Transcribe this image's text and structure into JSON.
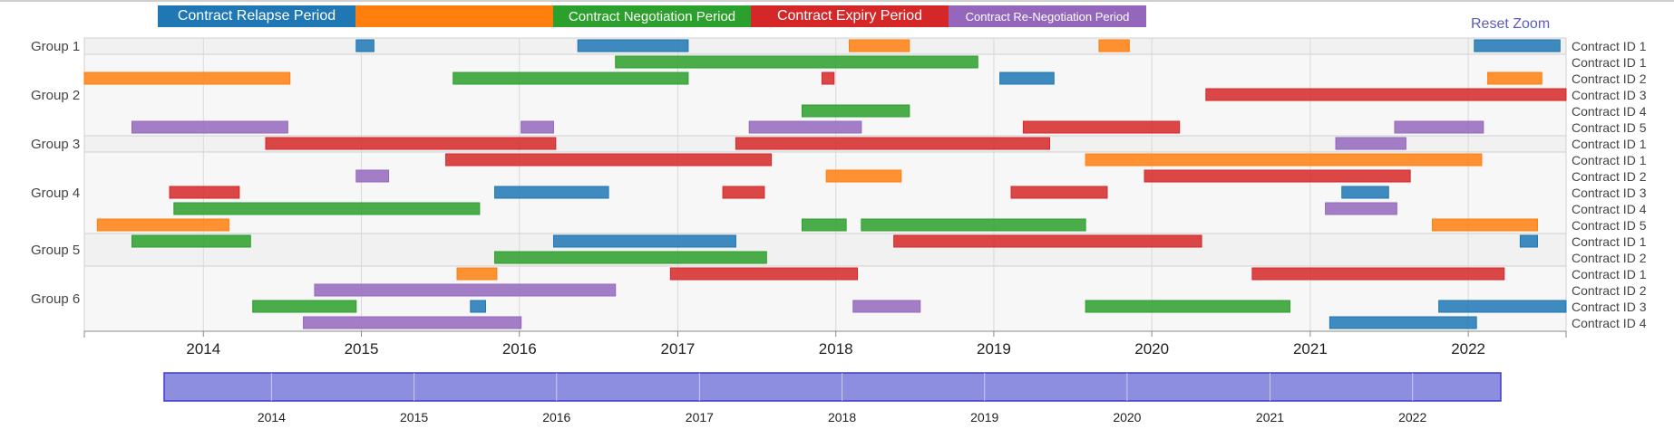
{
  "legend": [
    {
      "label": "Contract Relapse Period",
      "color": "#1f77b4"
    },
    {
      "label": "",
      "color": "#ff7f0e"
    },
    {
      "label": "Contract Negotiation Period",
      "color": "#2ca02c"
    },
    {
      "label": "Contract Expiry Period",
      "color": "#d62728"
    },
    {
      "label": "Contract Re-Negotiation Period",
      "color": "#9467bd"
    }
  ],
  "reset_zoom_label": "Reset Zoom",
  "chart_data": {
    "type": "timeline",
    "x_range": [
      "2013-04-01",
      "2022-08-15"
    ],
    "x_ticks": [
      "2014",
      "2015",
      "2016",
      "2017",
      "2018",
      "2019",
      "2020",
      "2021",
      "2022"
    ],
    "navigator": {
      "range": [
        "2013-04-01",
        "2022-08-15"
      ],
      "ticks": [
        "2014",
        "2015",
        "2016",
        "2017",
        "2018",
        "2019",
        "2020",
        "2021",
        "2022"
      ],
      "selection": [
        "2013-04-01",
        "2022-08-15"
      ]
    },
    "groups": [
      {
        "name": "Group 1",
        "rows": [
          {
            "label": "Contract ID 1",
            "bars": [
              {
                "start": "2014-12-20",
                "end": "2015-01-30",
                "category": 0
              },
              {
                "start": "2016-05-15",
                "end": "2017-01-25",
                "category": 0
              },
              {
                "start": "2018-02-01",
                "end": "2018-06-20",
                "category": 1
              },
              {
                "start": "2019-09-01",
                "end": "2019-11-10",
                "category": 1
              },
              {
                "start": "2022-01-15",
                "end": "2022-08-01",
                "category": 0
              }
            ]
          }
        ]
      },
      {
        "name": "Group 2",
        "rows": [
          {
            "label": "Contract ID 1",
            "bars": [
              {
                "start": "2016-08-10",
                "end": "2018-11-25",
                "category": 2
              }
            ]
          },
          {
            "label": "Contract ID 2",
            "bars": [
              {
                "start": "2013-04-01",
                "end": "2014-07-20",
                "category": 1
              },
              {
                "start": "2015-08-01",
                "end": "2017-01-25",
                "category": 2
              },
              {
                "start": "2017-11-30",
                "end": "2017-12-28",
                "category": 3
              },
              {
                "start": "2019-01-15",
                "end": "2019-05-20",
                "category": 0
              },
              {
                "start": "2022-02-15",
                "end": "2022-06-20",
                "category": 1
              }
            ]
          },
          {
            "label": "Contract ID 3",
            "bars": [
              {
                "start": "2020-05-05",
                "end": "2022-08-15",
                "category": 3
              }
            ]
          },
          {
            "label": "Contract ID 4",
            "bars": [
              {
                "start": "2017-10-15",
                "end": "2018-06-20",
                "category": 2
              }
            ]
          },
          {
            "label": "Contract ID 5",
            "bars": [
              {
                "start": "2013-07-20",
                "end": "2014-07-15",
                "category": 4
              },
              {
                "start": "2016-01-05",
                "end": "2016-03-20",
                "category": 4
              },
              {
                "start": "2017-06-15",
                "end": "2018-03-01",
                "category": 4
              },
              {
                "start": "2019-03-10",
                "end": "2020-03-05",
                "category": 3
              },
              {
                "start": "2021-07-15",
                "end": "2022-02-05",
                "category": 4
              }
            ]
          }
        ]
      },
      {
        "name": "Group 3",
        "rows": [
          {
            "label": "Contract ID 1",
            "bars": [
              {
                "start": "2014-05-25",
                "end": "2016-03-25",
                "category": 3
              },
              {
                "start": "2017-05-15",
                "end": "2019-05-10",
                "category": 3
              },
              {
                "start": "2021-03-01",
                "end": "2021-08-10",
                "category": 4
              }
            ]
          }
        ]
      },
      {
        "name": "Group 4",
        "rows": [
          {
            "label": "Contract ID 1",
            "bars": [
              {
                "start": "2015-07-15",
                "end": "2017-08-05",
                "category": 3
              },
              {
                "start": "2019-08-01",
                "end": "2022-02-01",
                "category": 1
              }
            ]
          },
          {
            "label": "Contract ID 2",
            "bars": [
              {
                "start": "2014-12-20",
                "end": "2015-03-05",
                "category": 4
              },
              {
                "start": "2017-12-10",
                "end": "2018-06-01",
                "category": 1
              },
              {
                "start": "2019-12-15",
                "end": "2021-08-20",
                "category": 3
              }
            ]
          },
          {
            "label": "Contract ID 3",
            "bars": [
              {
                "start": "2013-10-15",
                "end": "2014-03-25",
                "category": 3
              },
              {
                "start": "2015-11-05",
                "end": "2016-07-25",
                "category": 0
              },
              {
                "start": "2017-04-15",
                "end": "2017-07-20",
                "category": 3
              },
              {
                "start": "2019-02-10",
                "end": "2019-09-20",
                "category": 3
              },
              {
                "start": "2021-03-15",
                "end": "2021-07-01",
                "category": 0
              }
            ]
          },
          {
            "label": "Contract ID 4",
            "bars": [
              {
                "start": "2013-10-25",
                "end": "2015-10-01",
                "category": 2
              },
              {
                "start": "2021-02-05",
                "end": "2021-07-20",
                "category": 4
              }
            ]
          },
          {
            "label": "Contract ID 5",
            "bars": [
              {
                "start": "2013-05-01",
                "end": "2014-03-01",
                "category": 1
              },
              {
                "start": "2017-10-15",
                "end": "2018-01-25",
                "category": 2
              },
              {
                "start": "2018-03-01",
                "end": "2019-08-01",
                "category": 2
              },
              {
                "start": "2021-10-10",
                "end": "2022-06-10",
                "category": 1
              }
            ]
          }
        ]
      },
      {
        "name": "Group 5",
        "rows": [
          {
            "label": "Contract ID 1",
            "bars": [
              {
                "start": "2013-07-20",
                "end": "2014-04-20",
                "category": 2
              },
              {
                "start": "2016-03-20",
                "end": "2017-05-15",
                "category": 0
              },
              {
                "start": "2018-05-15",
                "end": "2020-04-25",
                "category": 3
              },
              {
                "start": "2022-05-01",
                "end": "2022-06-10",
                "category": 0
              }
            ]
          },
          {
            "label": "Contract ID 2",
            "bars": [
              {
                "start": "2015-11-05",
                "end": "2017-07-25",
                "category": 2
              }
            ]
          }
        ]
      },
      {
        "name": "Group 6",
        "rows": [
          {
            "label": "Contract ID 1",
            "bars": [
              {
                "start": "2015-08-10",
                "end": "2015-11-10",
                "category": 1
              },
              {
                "start": "2016-12-15",
                "end": "2018-02-20",
                "category": 3
              },
              {
                "start": "2020-08-20",
                "end": "2022-03-25",
                "category": 3
              }
            ]
          },
          {
            "label": "Contract ID 2",
            "bars": [
              {
                "start": "2014-09-15",
                "end": "2016-08-10",
                "category": 4
              }
            ]
          },
          {
            "label": "Contract ID 3",
            "bars": [
              {
                "start": "2014-04-25",
                "end": "2014-12-20",
                "category": 2
              },
              {
                "start": "2015-09-10",
                "end": "2015-10-15",
                "category": 0
              },
              {
                "start": "2018-02-10",
                "end": "2018-07-15",
                "category": 4
              },
              {
                "start": "2019-08-01",
                "end": "2020-11-15",
                "category": 2
              },
              {
                "start": "2021-10-25",
                "end": "2022-08-15",
                "category": 0
              }
            ]
          },
          {
            "label": "Contract ID 4",
            "bars": [
              {
                "start": "2014-08-20",
                "end": "2016-01-05",
                "category": 4
              },
              {
                "start": "2021-02-15",
                "end": "2022-01-20",
                "category": 0
              }
            ]
          }
        ]
      }
    ]
  }
}
